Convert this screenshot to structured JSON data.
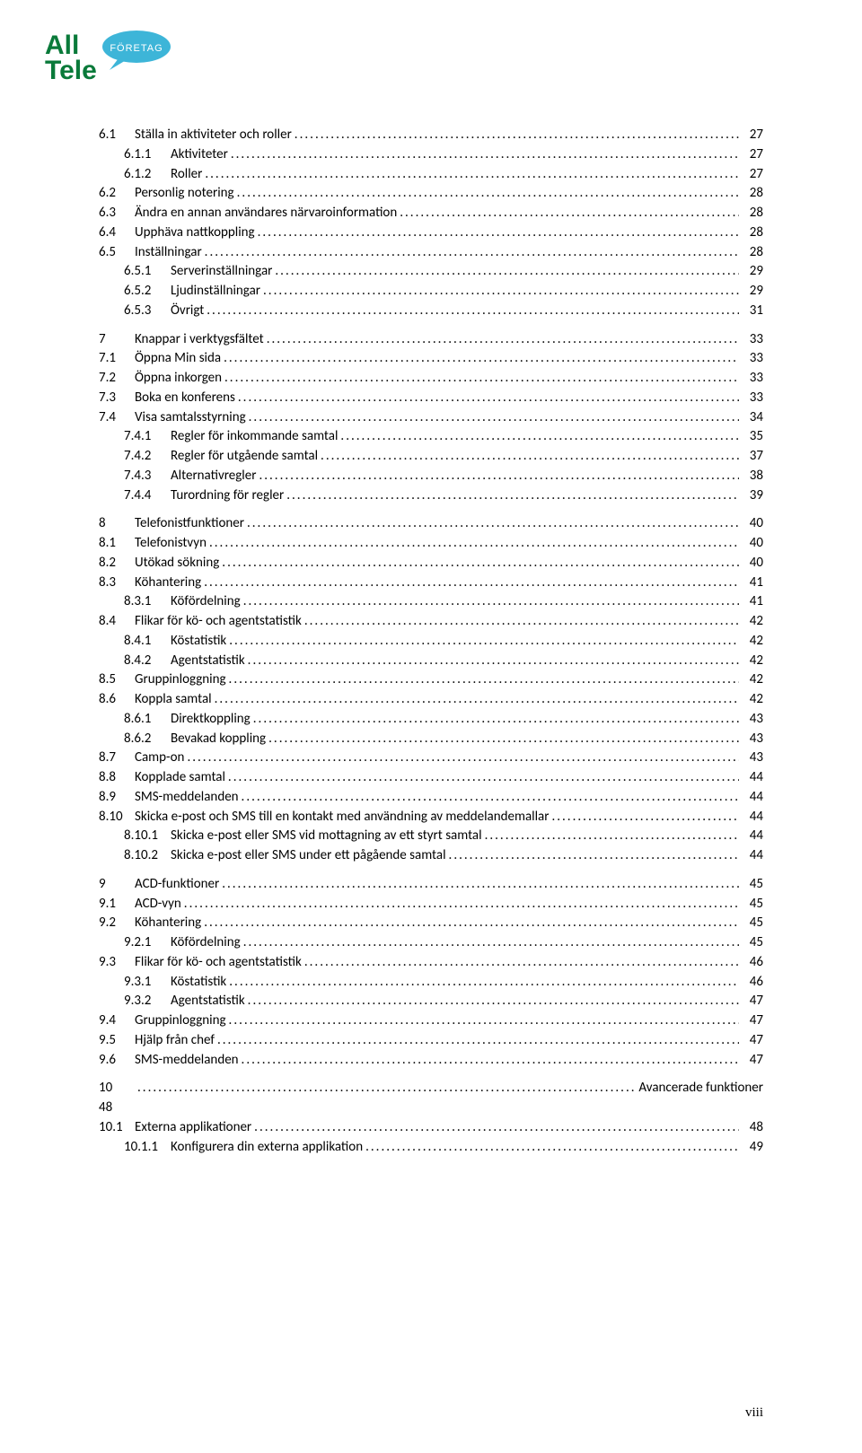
{
  "logo": {
    "text_top": "All",
    "text_bottom": "Tele",
    "bubble_text": "FÖRETAG",
    "main_color": "#0a7a3a",
    "bubble_color": "#3db5d8",
    "bubble_text_color": "#ffffff"
  },
  "toc": [
    {
      "level": 0,
      "num": "6.1",
      "title": "Ställa in aktiviteter och roller",
      "page": "27"
    },
    {
      "level": 1,
      "num": "6.1.1",
      "title": "Aktiviteter",
      "page": "27"
    },
    {
      "level": 1,
      "num": "6.1.2",
      "title": "Roller",
      "page": "27"
    },
    {
      "level": 0,
      "num": "6.2",
      "title": "Personlig notering",
      "page": "28"
    },
    {
      "level": 0,
      "num": "6.3",
      "title": "Ändra en annan användares närvaroinformation",
      "page": "28"
    },
    {
      "level": 0,
      "num": "6.4",
      "title": "Upphäva nattkoppling",
      "page": "28"
    },
    {
      "level": 0,
      "num": "6.5",
      "title": "Inställningar",
      "page": "28"
    },
    {
      "level": 1,
      "num": "6.5.1",
      "title": "Serverinställningar",
      "page": "29"
    },
    {
      "level": 1,
      "num": "6.5.2",
      "title": "Ljudinställningar",
      "page": "29"
    },
    {
      "level": 1,
      "num": "6.5.3",
      "title": "Övrigt",
      "page": "31"
    },
    {
      "spacer": true
    },
    {
      "level": -1,
      "num": "7",
      "title": "Knappar i verktygsfältet",
      "page": "33"
    },
    {
      "level": 0,
      "num": "7.1",
      "title": "Öppna Min sida",
      "page": "33"
    },
    {
      "level": 0,
      "num": "7.2",
      "title": "Öppna inkorgen",
      "page": "33"
    },
    {
      "level": 0,
      "num": "7.3",
      "title": "Boka en konferens",
      "page": "33"
    },
    {
      "level": 0,
      "num": "7.4",
      "title": "Visa samtalsstyrning",
      "page": "34"
    },
    {
      "level": 1,
      "num": "7.4.1",
      "title": "Regler för inkommande samtal",
      "page": "35"
    },
    {
      "level": 1,
      "num": "7.4.2",
      "title": "Regler för utgående samtal",
      "page": "37"
    },
    {
      "level": 1,
      "num": "7.4.3",
      "title": "Alternativregler",
      "page": "38"
    },
    {
      "level": 1,
      "num": "7.4.4",
      "title": "Turordning för regler",
      "page": "39"
    },
    {
      "spacer": true
    },
    {
      "level": -1,
      "num": "8",
      "title": "Telefonistfunktioner",
      "page": "40"
    },
    {
      "level": 0,
      "num": "8.1",
      "title": "Telefonistvyn",
      "page": "40"
    },
    {
      "level": 0,
      "num": "8.2",
      "title": "Utökad sökning",
      "page": "40"
    },
    {
      "level": 0,
      "num": "8.3",
      "title": "Köhantering",
      "page": "41"
    },
    {
      "level": 1,
      "num": "8.3.1",
      "title": "Köfördelning",
      "page": "41"
    },
    {
      "level": 0,
      "num": "8.4",
      "title": "Flikar för kö- och agentstatistik",
      "page": "42"
    },
    {
      "level": 1,
      "num": "8.4.1",
      "title": "Köstatistik",
      "page": "42"
    },
    {
      "level": 1,
      "num": "8.4.2",
      "title": "Agentstatistik",
      "page": "42"
    },
    {
      "level": 0,
      "num": "8.5",
      "title": "Gruppinloggning",
      "page": "42"
    },
    {
      "level": 0,
      "num": "8.6",
      "title": "Koppla samtal",
      "page": "42"
    },
    {
      "level": 1,
      "num": "8.6.1",
      "title": "Direktkoppling",
      "page": "43"
    },
    {
      "level": 1,
      "num": "8.6.2",
      "title": "Bevakad koppling",
      "page": "43"
    },
    {
      "level": 0,
      "num": "8.7",
      "title": "Camp-on",
      "page": "43"
    },
    {
      "level": 0,
      "num": "8.8",
      "title": "Kopplade samtal",
      "page": "44"
    },
    {
      "level": 0,
      "num": "8.9",
      "title": "SMS-meddelanden",
      "page": "44"
    },
    {
      "level": 0,
      "num": "8.10",
      "title": "Skicka e-post och SMS till en kontakt med användning av meddelandemallar",
      "page": "44"
    },
    {
      "level": 1,
      "num": "8.10.1",
      "title": "Skicka e-post eller SMS vid mottagning av ett styrt samtal",
      "page": "44"
    },
    {
      "level": 1,
      "num": "8.10.2",
      "title": "Skicka e-post eller SMS under ett pågående samtal",
      "page": "44"
    },
    {
      "spacer": true
    },
    {
      "level": -1,
      "num": "9",
      "title": "ACD-funktioner",
      "page": "45"
    },
    {
      "level": 0,
      "num": "9.1",
      "title": "ACD-vyn",
      "page": "45"
    },
    {
      "level": 0,
      "num": "9.2",
      "title": "Köhantering",
      "page": "45"
    },
    {
      "level": 1,
      "num": "9.2.1",
      "title": "Köfördelning",
      "page": "45"
    },
    {
      "level": 0,
      "num": "9.3",
      "title": "Flikar för kö- och agentstatistik",
      "page": "46"
    },
    {
      "level": 1,
      "num": "9.3.1",
      "title": "Köstatistik",
      "page": "46"
    },
    {
      "level": 1,
      "num": "9.3.2",
      "title": "Agentstatistik",
      "page": "47"
    },
    {
      "level": 0,
      "num": "9.4",
      "title": "Gruppinloggning",
      "page": "47"
    },
    {
      "level": 0,
      "num": "9.5",
      "title": "Hjälp från chef",
      "page": "47"
    },
    {
      "level": 0,
      "num": "9.6",
      "title": "SMS-meddelanden",
      "page": "47"
    },
    {
      "spacer": true
    },
    {
      "level": -1,
      "num": "10",
      "title": "",
      "page_right": "Avancerade funktioner",
      "after": "48"
    },
    {
      "level": 0,
      "num": "10.1",
      "title": "Externa applikationer",
      "page": "48"
    },
    {
      "level": 1,
      "num": "10.1.1",
      "title": "Konfigurera din externa applikation",
      "page": "49"
    }
  ],
  "footer_page": "viii"
}
